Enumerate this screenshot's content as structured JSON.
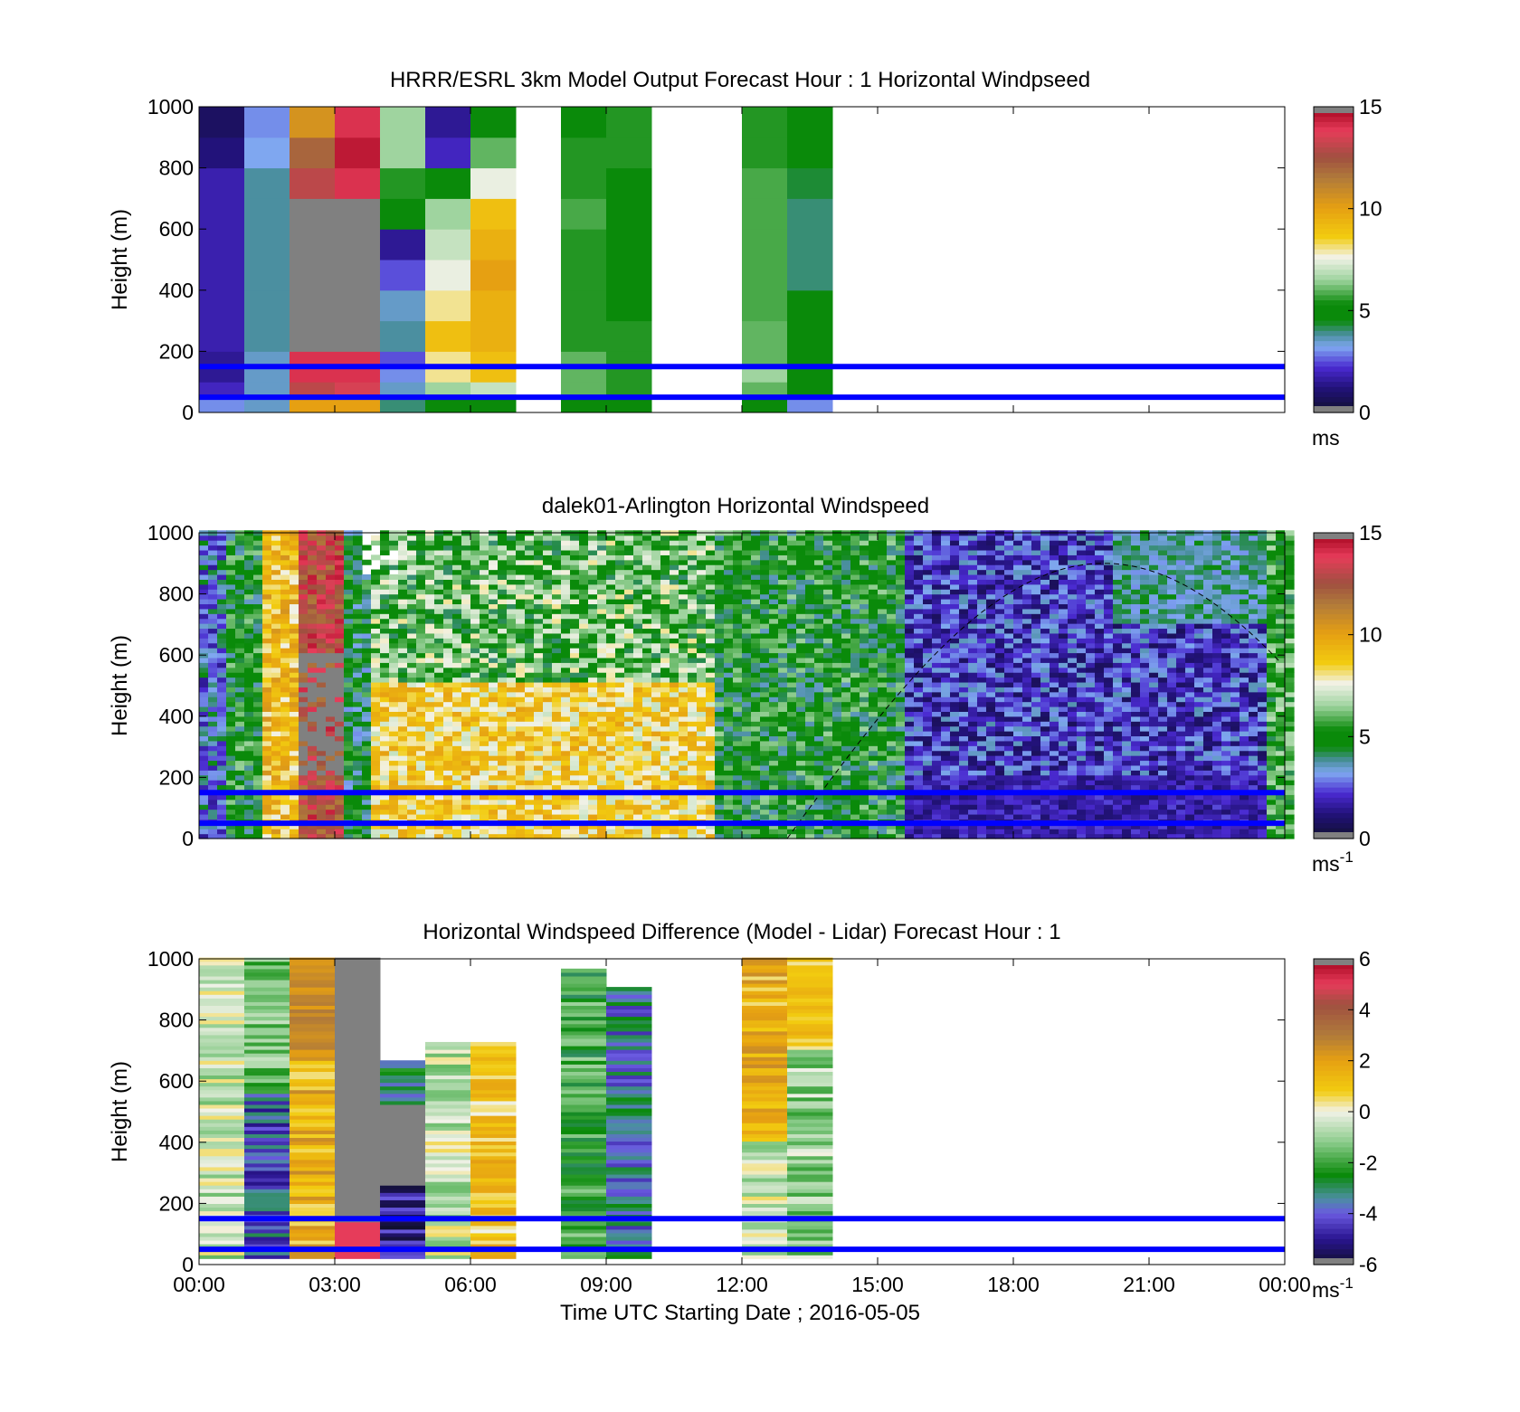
{
  "figure": {
    "shared_xlabel": "Time UTC  Starting Date ; 2016-05-05"
  },
  "colors": {
    "reference_lines": "#0000ff",
    "missing": "#ffffff",
    "nodata_gray": "#808080"
  },
  "chart_data": [
    {
      "type": "heatmap",
      "title": "HRRR/ESRL 3km Model Output   Forecast Hour : 1 Horizontal Windpseed",
      "ylabel": "Height (m)",
      "xlabel": "",
      "x_ticks": [
        "00:00",
        "03:00",
        "06:00",
        "09:00",
        "12:00",
        "15:00",
        "18:00",
        "21:00",
        "00:00"
      ],
      "x_tick_labels_shown": false,
      "xlim_hours": [
        0,
        24
      ],
      "ylim": [
        0,
        1000
      ],
      "y_ticks": [
        "0",
        "200",
        "400",
        "600",
        "800",
        "1000"
      ],
      "colorbar": {
        "min": 0,
        "max": 15,
        "ticks": [
          "0",
          "5",
          "10",
          "15"
        ],
        "unit": "ms",
        "unit_superscript": ""
      },
      "reference_lines_m": [
        50,
        150
      ],
      "column_width_hours": 1,
      "heights_m": [
        0,
        50,
        100,
        150,
        200,
        300,
        400,
        500,
        600,
        700,
        800,
        900,
        1000
      ],
      "columns": [
        {
          "start_hour": 0,
          "values": [
            3,
            2,
            1.5,
            1.5,
            1.8,
            1.8,
            1.8,
            1.8,
            1.8,
            1.8,
            1.2,
            0.8
          ]
        },
        {
          "start_hour": 1,
          "values": [
            3.5,
            3.5,
            3.5,
            3.5,
            3.8,
            3.8,
            3.8,
            3.8,
            3.8,
            3.8,
            3.2,
            3
          ]
        },
        {
          "start_hour": 2,
          "values": [
            10,
            13,
            14,
            14,
            null,
            null,
            null,
            null,
            null,
            13,
            12,
            10.5
          ]
        },
        {
          "start_hour": 3,
          "values": [
            10,
            13.5,
            14,
            14,
            null,
            null,
            null,
            null,
            null,
            14,
            14.5,
            14
          ]
        },
        {
          "start_hour": 4,
          "values": [
            4,
            3.5,
            3,
            2.5,
            3.8,
            3.5,
            2.5,
            1.5,
            5,
            5.5,
            6.5,
            6.5
          ]
        },
        {
          "start_hour": 5,
          "values": [
            5,
            6.5,
            8,
            8,
            9,
            8,
            7.5,
            7,
            6.5,
            5,
            2,
            1.5
          ]
        },
        {
          "start_hour": 6,
          "values": [
            5,
            7,
            9,
            9,
            9.5,
            9.5,
            10,
            9.5,
            9,
            7.5,
            6,
            5
          ]
        },
        {
          "start_hour": 7,
          "values": [
            null,
            null,
            null,
            null,
            null,
            null,
            null,
            null,
            null,
            null,
            null,
            null
          ]
        },
        {
          "start_hour": 8,
          "values": [
            5,
            6,
            6,
            6,
            5.5,
            5.5,
            5.5,
            5.5,
            5.8,
            5.5,
            5.5,
            5
          ]
        },
        {
          "start_hour": 9,
          "values": [
            5,
            5.5,
            5.5,
            5.5,
            5.5,
            5,
            5,
            5,
            5,
            5,
            5.5,
            5.5
          ]
        },
        {
          "start_hour": 10,
          "values": [
            null,
            null,
            null,
            null,
            null,
            null,
            null,
            null,
            null,
            null,
            null,
            null
          ]
        },
        {
          "start_hour": 11,
          "values": [
            null,
            null,
            null,
            null,
            null,
            null,
            null,
            null,
            null,
            null,
            null,
            null
          ]
        },
        {
          "start_hour": 12,
          "values": [
            5,
            6,
            6.5,
            6,
            6,
            5.8,
            5.8,
            5.8,
            5.8,
            5.8,
            5.5,
            5.5
          ]
        },
        {
          "start_hour": 13,
          "values": [
            3,
            5,
            5,
            5,
            4.8,
            4.5,
            4,
            4,
            4,
            4.3,
            4.5,
            4.5
          ]
        }
      ]
    },
    {
      "type": "heatmap",
      "title": "dalek01-Arlington  Horizontal Windspeed",
      "ylabel": "Height (m)",
      "xlabel": "",
      "x_ticks": [
        "00:00",
        "03:00",
        "06:00",
        "09:00",
        "12:00",
        "15:00",
        "18:00",
        "21:00",
        "00:00"
      ],
      "x_tick_labels_shown": false,
      "xlim_hours": [
        0,
        24
      ],
      "ylim": [
        0,
        1000
      ],
      "y_ticks": [
        "0",
        "200",
        "400",
        "600",
        "800",
        "1000"
      ],
      "colorbar": {
        "min": 0,
        "max": 15,
        "ticks": [
          "0",
          "5",
          "10",
          "15"
        ],
        "unit": "ms",
        "unit_superscript": "-1"
      },
      "reference_lines_m": [
        50,
        150
      ],
      "annotations": [
        "dashed curve (solar elevation)"
      ],
      "approx_regimes": [
        {
          "hours": [
            0,
            0.6
          ],
          "mean_speed": 3
        },
        {
          "hours": [
            0.6,
            1.3
          ],
          "mean_speed": 5
        },
        {
          "hours": [
            1.3,
            2.0
          ],
          "mean_speed": 9
        },
        {
          "hours": [
            2.0,
            3.1
          ],
          "mean_speed": 13
        },
        {
          "hours": [
            3.1,
            3.8
          ],
          "mean_speed": 4.5
        },
        {
          "hours": [
            3.8,
            11.3
          ],
          "mean_speed": 8.5
        },
        {
          "hours": [
            11.3,
            15.5
          ],
          "mean_speed": 5
        },
        {
          "hours": [
            15.5,
            23.5
          ],
          "mean_speed": 2.2
        },
        {
          "hours": [
            23.5,
            24
          ],
          "mean_speed": 5.5
        }
      ]
    },
    {
      "type": "heatmap",
      "title": "Horizontal Windspeed Difference (Model - Lidar) Forecast Hour : 1",
      "ylabel": "Height (m)",
      "xlabel": "Time UTC  Starting Date ; 2016-05-05",
      "x_ticks": [
        "00:00",
        "03:00",
        "06:00",
        "09:00",
        "12:00",
        "15:00",
        "18:00",
        "21:00",
        "00:00"
      ],
      "x_tick_labels_shown": true,
      "xlim_hours": [
        0,
        24
      ],
      "ylim": [
        0,
        1000
      ],
      "y_ticks": [
        "0",
        "200",
        "400",
        "600",
        "800",
        "1000"
      ],
      "colorbar": {
        "min": -6,
        "max": 6,
        "ticks": [
          "-6",
          "-4",
          "-2",
          "0",
          "2",
          "4",
          "6"
        ],
        "unit": "ms",
        "unit_superscript": "-1"
      },
      "reference_lines_m": [
        50,
        150
      ],
      "column_width_hours": 1,
      "columns": [
        {
          "start_hour": 0,
          "top_m": 1000,
          "approx_mean_diff": -0.5
        },
        {
          "start_hour": 1,
          "top_m": 1000,
          "approx_mean_diff": -4
        },
        {
          "start_hour": 2,
          "top_m": 1000,
          "approx_mean_diff": 1.5
        },
        {
          "start_hour": 3,
          "top_m": 1000,
          "approx_mean_diff": null
        },
        {
          "start_hour": 4,
          "top_m": 660,
          "approx_mean_diff": -5
        },
        {
          "start_hour": 5,
          "top_m": 720,
          "approx_mean_diff": -0.5
        },
        {
          "start_hour": 6,
          "top_m": 720,
          "approx_mean_diff": 1
        },
        {
          "start_hour": 8,
          "top_m": 960,
          "approx_mean_diff": -2
        },
        {
          "start_hour": 9,
          "top_m": 900,
          "approx_mean_diff": -3.5
        },
        {
          "start_hour": 12,
          "top_m": 1000,
          "approx_mean_diff": 1.5
        },
        {
          "start_hour": 13,
          "top_m": 1000,
          "approx_mean_diff": -1
        }
      ]
    }
  ]
}
